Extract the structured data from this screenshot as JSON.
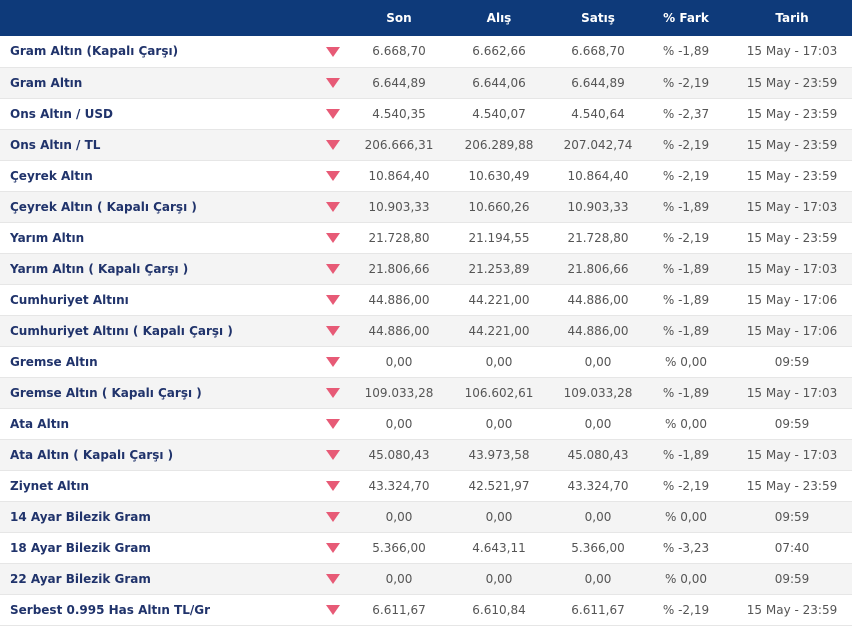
{
  "colors": {
    "header_bg": "#0e3a7a",
    "arrow_down": "#e75a76",
    "name_text": "#20336b"
  },
  "table": {
    "headers": {
      "name": "",
      "trend": "",
      "son": "Son",
      "alis": "Alış",
      "satis": "Satış",
      "fark": "% Fark",
      "tarih": "Tarih"
    },
    "rows": [
      {
        "name": "Gram Altın (Kapalı Çarşı)",
        "trend_icon": "down-arrow-icon",
        "son": "6.668,70",
        "alis": "6.662,66",
        "satis": "6.668,70",
        "fark": "% -1,89",
        "tarih": "15 May - 17:03"
      },
      {
        "name": "Gram Altın",
        "trend_icon": "down-arrow-icon",
        "son": "6.644,89",
        "alis": "6.644,06",
        "satis": "6.644,89",
        "fark": "% -2,19",
        "tarih": "15 May - 23:59"
      },
      {
        "name": "Ons Altın / USD",
        "trend_icon": "down-arrow-icon",
        "son": "4.540,35",
        "alis": "4.540,07",
        "satis": "4.540,64",
        "fark": "% -2,37",
        "tarih": "15 May - 23:59"
      },
      {
        "name": "Ons Altın / TL",
        "trend_icon": "down-arrow-icon",
        "son": "206.666,31",
        "alis": "206.289,88",
        "satis": "207.042,74",
        "fark": "% -2,19",
        "tarih": "15 May - 23:59"
      },
      {
        "name": "Çeyrek Altın",
        "trend_icon": "down-arrow-icon",
        "son": "10.864,40",
        "alis": "10.630,49",
        "satis": "10.864,40",
        "fark": "% -2,19",
        "tarih": "15 May - 23:59"
      },
      {
        "name": "Çeyrek Altın ( Kapalı Çarşı )",
        "trend_icon": "down-arrow-icon",
        "son": "10.903,33",
        "alis": "10.660,26",
        "satis": "10.903,33",
        "fark": "% -1,89",
        "tarih": "15 May - 17:03"
      },
      {
        "name": "Yarım Altın",
        "trend_icon": "down-arrow-icon",
        "son": "21.728,80",
        "alis": "21.194,55",
        "satis": "21.728,80",
        "fark": "% -2,19",
        "tarih": "15 May - 23:59"
      },
      {
        "name": "Yarım Altın ( Kapalı Çarşı )",
        "trend_icon": "down-arrow-icon",
        "son": "21.806,66",
        "alis": "21.253,89",
        "satis": "21.806,66",
        "fark": "% -1,89",
        "tarih": "15 May - 17:03"
      },
      {
        "name": "Cumhuriyet Altını",
        "trend_icon": "down-arrow-icon",
        "son": "44.886,00",
        "alis": "44.221,00",
        "satis": "44.886,00",
        "fark": "% -1,89",
        "tarih": "15 May - 17:06"
      },
      {
        "name": "Cumhuriyet Altını ( Kapalı Çarşı )",
        "trend_icon": "down-arrow-icon",
        "son": "44.886,00",
        "alis": "44.221,00",
        "satis": "44.886,00",
        "fark": "% -1,89",
        "tarih": "15 May - 17:06"
      },
      {
        "name": "Gremse Altın",
        "trend_icon": "down-arrow-icon",
        "son": "0,00",
        "alis": "0,00",
        "satis": "0,00",
        "fark": "% 0,00",
        "tarih": "09:59"
      },
      {
        "name": "Gremse Altın ( Kapalı Çarşı )",
        "trend_icon": "down-arrow-icon",
        "son": "109.033,28",
        "alis": "106.602,61",
        "satis": "109.033,28",
        "fark": "% -1,89",
        "tarih": "15 May - 17:03"
      },
      {
        "name": "Ata Altın",
        "trend_icon": "down-arrow-icon",
        "son": "0,00",
        "alis": "0,00",
        "satis": "0,00",
        "fark": "% 0,00",
        "tarih": "09:59"
      },
      {
        "name": "Ata Altın ( Kapalı Çarşı )",
        "trend_icon": "down-arrow-icon",
        "son": "45.080,43",
        "alis": "43.973,58",
        "satis": "45.080,43",
        "fark": "% -1,89",
        "tarih": "15 May - 17:03"
      },
      {
        "name": "Ziynet Altın",
        "trend_icon": "down-arrow-icon",
        "son": "43.324,70",
        "alis": "42.521,97",
        "satis": "43.324,70",
        "fark": "% -2,19",
        "tarih": "15 May - 23:59"
      },
      {
        "name": "14 Ayar Bilezik Gram",
        "trend_icon": "down-arrow-icon",
        "son": "0,00",
        "alis": "0,00",
        "satis": "0,00",
        "fark": "% 0,00",
        "tarih": "09:59"
      },
      {
        "name": "18 Ayar Bilezik Gram",
        "trend_icon": "down-arrow-icon",
        "son": "5.366,00",
        "alis": "4.643,11",
        "satis": "5.366,00",
        "fark": "% -3,23",
        "tarih": "07:40"
      },
      {
        "name": "22 Ayar Bilezik Gram",
        "trend_icon": "down-arrow-icon",
        "son": "0,00",
        "alis": "0,00",
        "satis": "0,00",
        "fark": "% 0,00",
        "tarih": "09:59"
      },
      {
        "name": "Serbest 0.995 Has Altın TL/Gr",
        "trend_icon": "down-arrow-icon",
        "son": "6.611,67",
        "alis": "6.610,84",
        "satis": "6.611,67",
        "fark": "% -2,19",
        "tarih": "15 May - 23:59"
      }
    ]
  }
}
